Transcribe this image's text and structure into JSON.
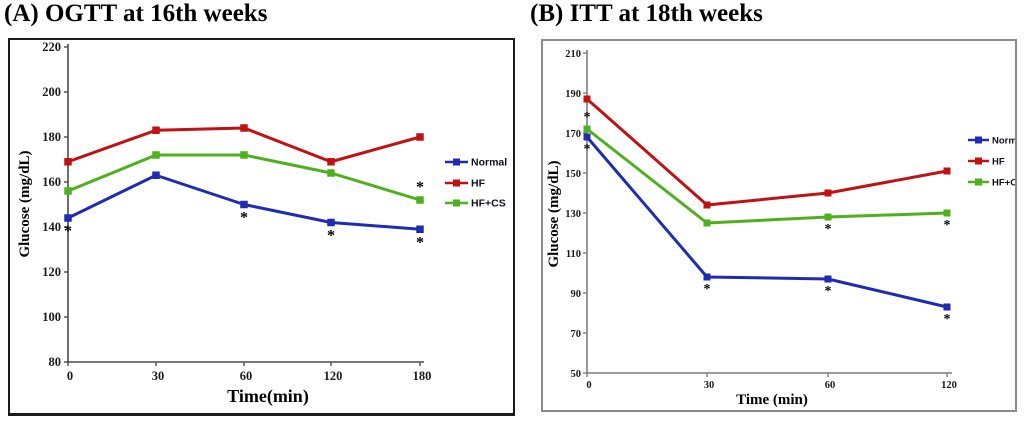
{
  "figure": {
    "background": "#ffffff"
  },
  "chart_data": [
    {
      "type": "line",
      "panel": "A",
      "title": "(A) OGTT at 16th weeks",
      "xlabel": "Time(min)",
      "ylabel": "Glucose (mg/dL)",
      "categories": [
        "0",
        "30",
        "60",
        "120",
        "180"
      ],
      "ylim": [
        80,
        220
      ],
      "ytick_step": 20,
      "grid": false,
      "legend_position": "right",
      "series": [
        {
          "name": "Normal",
          "color": "#1e2cb4",
          "marker": "square",
          "values": [
            144,
            163,
            150,
            142,
            139
          ]
        },
        {
          "name": "HF",
          "color": "#c01212",
          "marker": "square",
          "values": [
            169,
            183,
            184,
            169,
            180
          ]
        },
        {
          "name": "HF+CS",
          "color": "#4fb01e",
          "marker": "square",
          "values": [
            156,
            172,
            172,
            164,
            152
          ]
        }
      ],
      "annotations": [
        {
          "category": "0",
          "series": "Normal",
          "text": "*",
          "position": "below"
        },
        {
          "category": "60",
          "series": "Normal",
          "text": "*",
          "position": "below"
        },
        {
          "category": "120",
          "series": "Normal",
          "text": "*",
          "position": "below"
        },
        {
          "category": "180",
          "series": "HF+CS",
          "text": "*",
          "position": "above"
        },
        {
          "category": "180",
          "series": "Normal",
          "text": "*",
          "position": "below"
        }
      ]
    },
    {
      "type": "line",
      "panel": "B",
      "title": "(B) ITT at 18th weeks",
      "xlabel": "Time (min)",
      "ylabel": "Glucose (mg/dL)",
      "categories": [
        "0",
        "30",
        "60",
        "120"
      ],
      "ylim": [
        50,
        210
      ],
      "ytick_step": 20,
      "grid": false,
      "legend_position": "right",
      "series": [
        {
          "name": "Normal",
          "color": "#1e2cb4",
          "marker": "square",
          "values": [
            168,
            98,
            97,
            83
          ]
        },
        {
          "name": "HF",
          "color": "#c01212",
          "marker": "square",
          "values": [
            187,
            134,
            140,
            151
          ]
        },
        {
          "name": "HF+CS",
          "color": "#4fb01e",
          "marker": "square",
          "values": [
            172,
            125,
            128,
            130
          ]
        }
      ],
      "annotations": [
        {
          "category": "0",
          "series": "HF+CS",
          "text": "*",
          "position": "above"
        },
        {
          "category": "0",
          "series": "Normal",
          "text": "*",
          "position": "below"
        },
        {
          "category": "30",
          "series": "Normal",
          "text": "*",
          "position": "below"
        },
        {
          "category": "60",
          "series": "HF+CS",
          "text": "*",
          "position": "below"
        },
        {
          "category": "60",
          "series": "Normal",
          "text": "*",
          "position": "below"
        },
        {
          "category": "120",
          "series": "HF+CS",
          "text": "*",
          "position": "below"
        },
        {
          "category": "120",
          "series": "Normal",
          "text": "*",
          "position": "below"
        }
      ]
    }
  ]
}
